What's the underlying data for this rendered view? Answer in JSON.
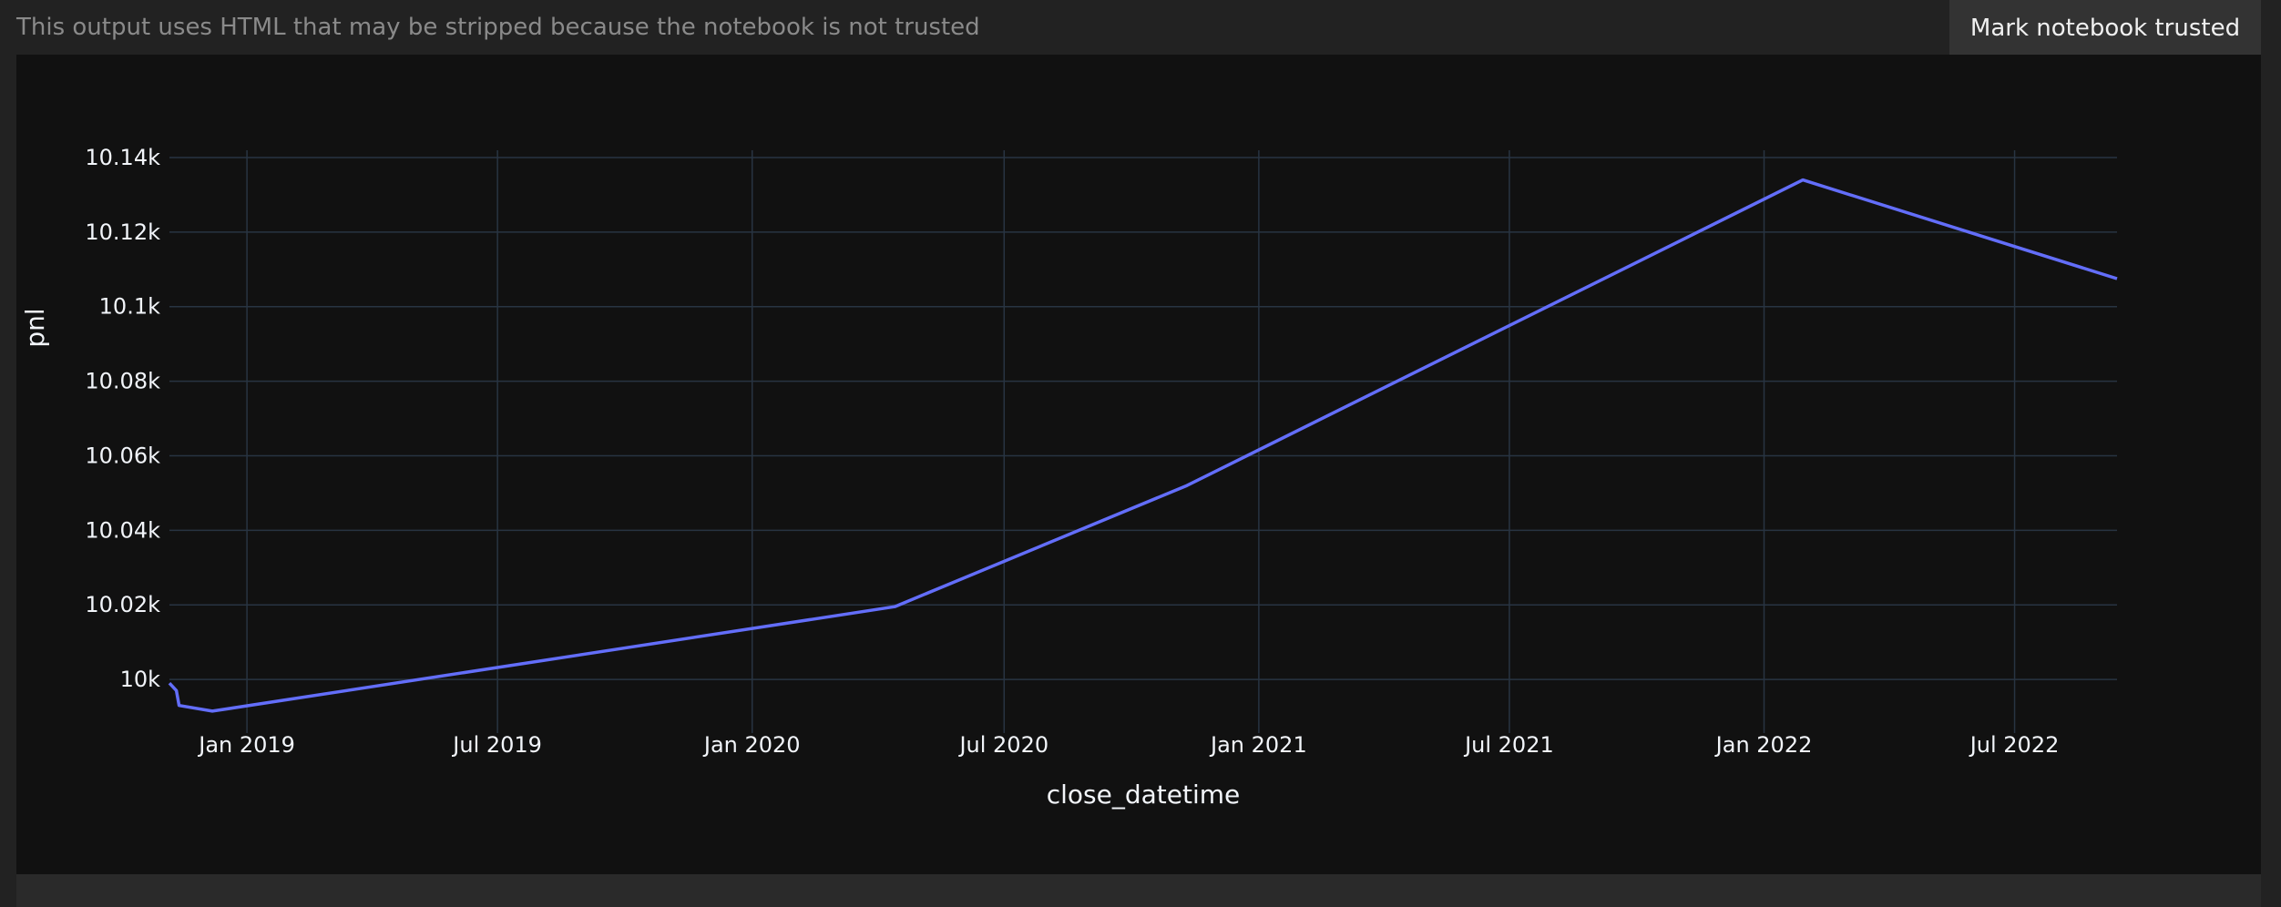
{
  "banner": {
    "message": "This output uses HTML that may be stripped because the notebook is not trusted",
    "trust_button_label": "Mark notebook trusted"
  },
  "colors": {
    "background": "#111111",
    "grid": "#283442",
    "line": "#636efa",
    "text": "#f2f5fa"
  },
  "chart_data": {
    "type": "line",
    "title": "",
    "xlabel": "close_datetime",
    "ylabel": "pnl",
    "x_ticks": [
      "2019-01-01",
      "2019-07-01",
      "2020-01-01",
      "2020-07-01",
      "2021-01-01",
      "2021-07-01",
      "2022-01-01",
      "2022-07-01"
    ],
    "x_tick_labels": [
      "Jan 2019",
      "Jul 2019",
      "Jan 2020",
      "Jul 2020",
      "Jan 2021",
      "Jul 2021",
      "Jan 2022",
      "Jul 2022"
    ],
    "y_ticks": [
      10000,
      10020,
      10040,
      10060,
      10080,
      10100,
      10120,
      10140
    ],
    "y_tick_labels": [
      "10k",
      "10.02k",
      "10.04k",
      "10.06k",
      "10.08k",
      "10.1k",
      "10.12k",
      "10.14k"
    ],
    "xlim": [
      "2018-11-06",
      "2022-09-13"
    ],
    "ylim": [
      9990,
      10140
    ],
    "grid": true,
    "series": [
      {
        "x": [
          "2018-11-06",
          "2018-11-11",
          "2018-11-13",
          "2018-12-07",
          "2020-04-13",
          "2020-11-10",
          "2022-01-29",
          "2022-09-13"
        ],
        "y": [
          9999,
          9997,
          9993,
          9991.5,
          10019.5,
          10052,
          10134,
          10107.5
        ]
      }
    ]
  }
}
